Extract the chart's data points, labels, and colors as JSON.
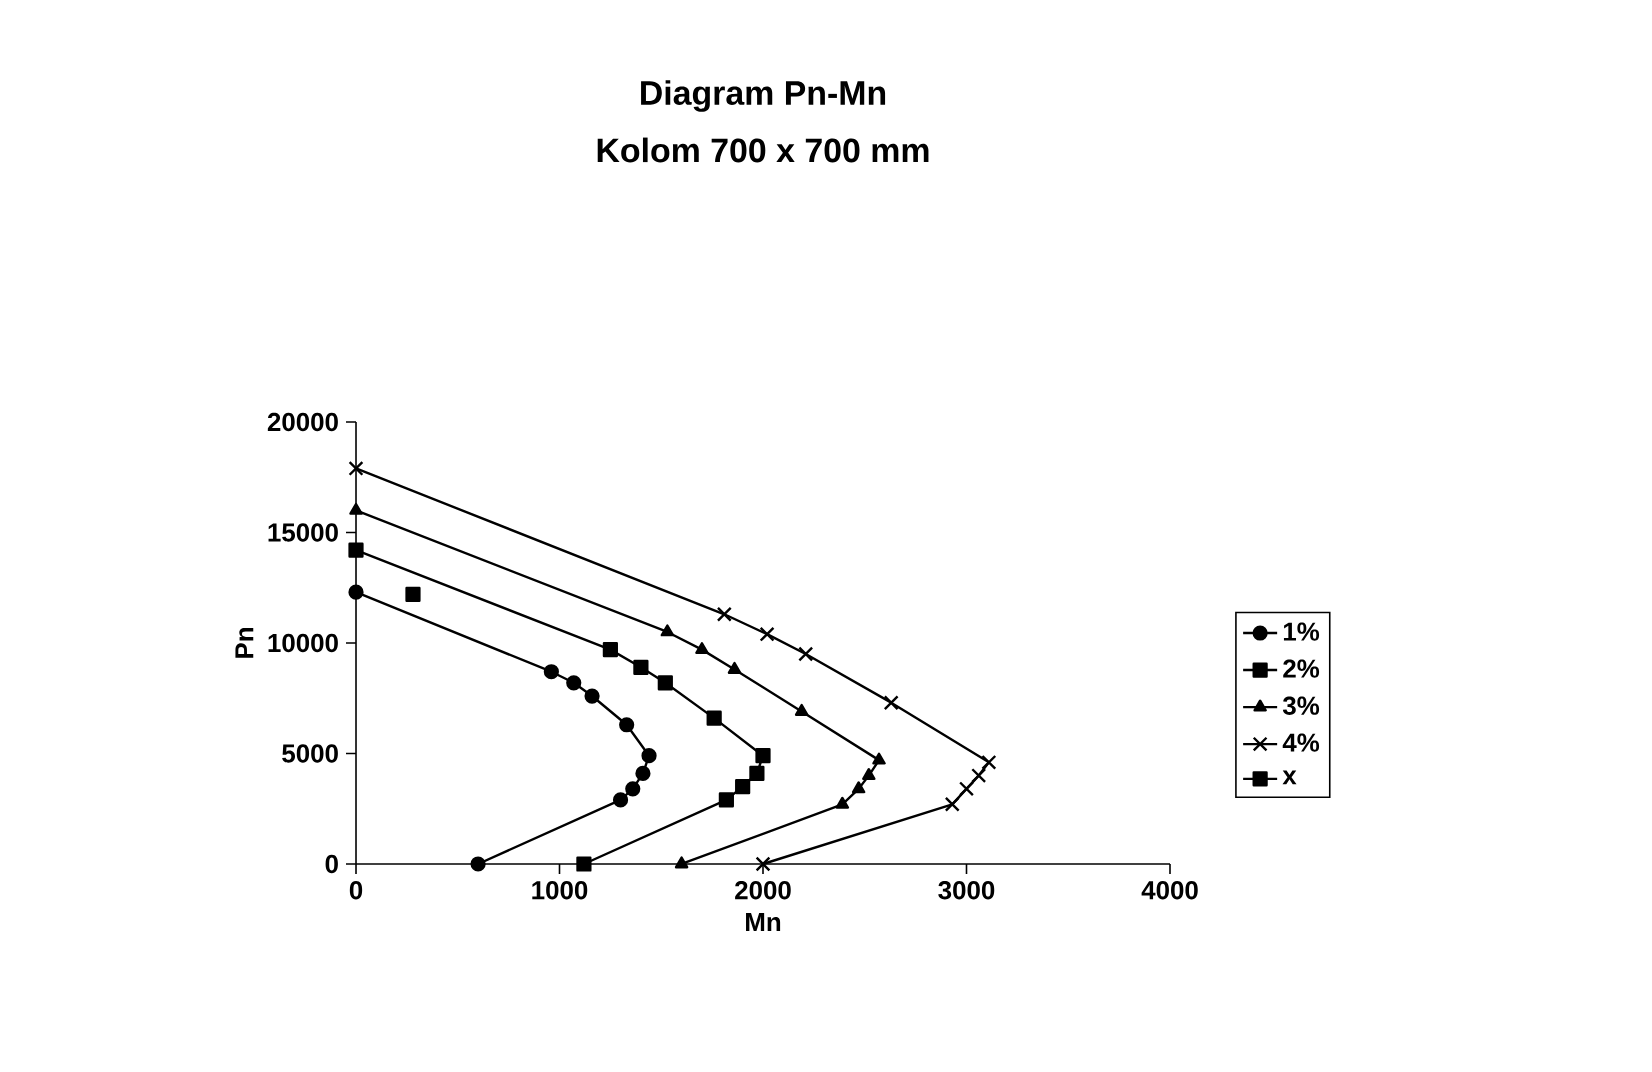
{
  "chart_data": {
    "type": "line",
    "title": "Diagram Pn-Mn",
    "subtitle": "Kolom 700 x 700 mm",
    "xlabel": "Mn",
    "ylabel": "Pn",
    "xlim": [
      0,
      4000
    ],
    "xticks": [
      0,
      1000,
      2000,
      3000,
      4000
    ],
    "ylim": [
      0,
      20000
    ],
    "yticks": [
      0,
      5000,
      10000,
      15000,
      20000
    ],
    "grid": false,
    "legend": "right",
    "series": [
      {
        "name": "1%",
        "color": "#000000",
        "marker": "circle",
        "x": [
          0,
          960,
          1070,
          1160,
          1330,
          1440,
          1410,
          1360,
          1300,
          600
        ],
        "values": [
          12300,
          8700,
          8200,
          7600,
          6300,
          4900,
          4100,
          3400,
          2900,
          0
        ]
      },
      {
        "name": "2%",
        "color": "#000000",
        "marker": "square",
        "x": [
          0,
          1250,
          1400,
          1520,
          1760,
          2000,
          1970,
          1900,
          1820,
          1120
        ],
        "values": [
          14200,
          9700,
          8900,
          8200,
          6600,
          4900,
          4100,
          3500,
          2900,
          0
        ]
      },
      {
        "name": "3%",
        "color": "#000000",
        "marker": "triangle",
        "x": [
          0,
          1530,
          1700,
          1860,
          2190,
          2570,
          2520,
          2470,
          2390,
          1600
        ],
        "values": [
          16000,
          10500,
          9700,
          8800,
          6900,
          4700,
          4000,
          3400,
          2700,
          0
        ]
      },
      {
        "name": "4%",
        "color": "#000000",
        "marker": "cross",
        "x": [
          0,
          1810,
          2020,
          2210,
          2630,
          3110,
          3060,
          3000,
          2930,
          2000
        ],
        "values": [
          17900,
          11300,
          10400,
          9500,
          7300,
          4600,
          4000,
          3400,
          2700,
          0
        ]
      },
      {
        "name": "x",
        "color": "#000000",
        "marker": "square",
        "x": [
          280
        ],
        "values": [
          12200
        ]
      }
    ]
  }
}
